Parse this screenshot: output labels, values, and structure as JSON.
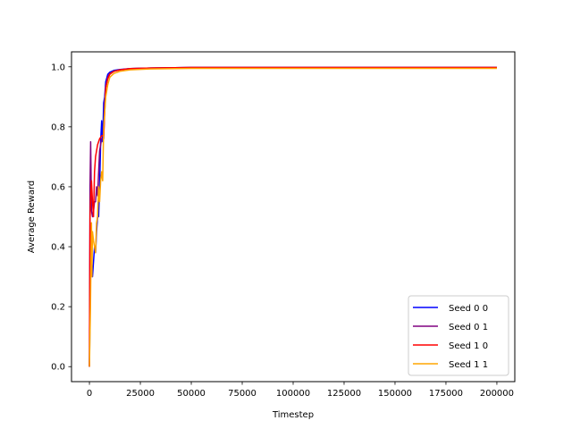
{
  "chart_data": {
    "type": "line",
    "title": "",
    "xlabel": "Timestep",
    "ylabel": "Average Reward",
    "xlim": [
      -8800,
      208800
    ],
    "ylim": [
      -0.05,
      1.05
    ],
    "xticks": [
      0,
      25000,
      50000,
      75000,
      100000,
      125000,
      150000,
      175000,
      200000
    ],
    "xtick_labels": [
      "0",
      "25000",
      "50000",
      "75000",
      "100000",
      "125000",
      "150000",
      "175000",
      "200000"
    ],
    "yticks": [
      0.0,
      0.2,
      0.4,
      0.6,
      0.8,
      1.0
    ],
    "ytick_labels": [
      "0.0",
      "0.2",
      "0.4",
      "0.6",
      "0.8",
      "1.0"
    ],
    "grid": false,
    "legend_position": "lower-right",
    "series": [
      {
        "name": "Seed 0 0",
        "color": "#0000ff",
        "x": [
          0,
          500,
          1000,
          1500,
          2000,
          2500,
          3000,
          3500,
          4000,
          4500,
          5000,
          5500,
          6000,
          6500,
          7000,
          7500,
          8000,
          9000,
          10000,
          12000,
          15000,
          20000,
          30000,
          50000,
          100000,
          150000,
          200000
        ],
        "y": [
          0.0,
          0.33,
          0.36,
          0.3,
          0.35,
          0.4,
          0.38,
          0.45,
          0.5,
          0.5,
          0.6,
          0.75,
          0.82,
          0.75,
          0.88,
          0.9,
          0.95,
          0.975,
          0.982,
          0.988,
          0.991,
          0.994,
          0.996,
          0.998,
          0.998,
          0.998,
          0.998
        ]
      },
      {
        "name": "Seed 0 1",
        "color": "#800080",
        "x": [
          0,
          300,
          600,
          1000,
          1500,
          2000,
          2500,
          3000,
          3500,
          4000,
          5000,
          6000,
          7000,
          7500,
          8000,
          9000,
          10000,
          12000,
          15000,
          20000,
          30000,
          50000,
          100000,
          150000,
          200000
        ],
        "y": [
          0.0,
          0.6,
          0.75,
          0.52,
          0.5,
          0.52,
          0.55,
          0.55,
          0.6,
          0.57,
          0.72,
          0.76,
          0.76,
          0.88,
          0.93,
          0.965,
          0.978,
          0.985,
          0.99,
          0.994,
          0.996,
          0.998,
          0.998,
          0.998,
          0.998
        ]
      },
      {
        "name": "Seed 1 0",
        "color": "#ff0000",
        "x": [
          0,
          300,
          700,
          1000,
          1500,
          2000,
          2500,
          3000,
          4000,
          5000,
          6000,
          7000,
          7500,
          8000,
          9000,
          10000,
          12000,
          15000,
          20000,
          30000,
          50000,
          100000,
          150000,
          200000
        ],
        "y": [
          0.0,
          0.5,
          0.58,
          0.62,
          0.55,
          0.5,
          0.65,
          0.7,
          0.74,
          0.76,
          0.77,
          0.77,
          0.85,
          0.93,
          0.96,
          0.975,
          0.985,
          0.99,
          0.994,
          0.996,
          0.998,
          0.998,
          0.998,
          0.998
        ]
      },
      {
        "name": "Seed 1 1",
        "color": "#ffa500",
        "x": [
          0,
          500,
          1000,
          1200,
          1500,
          2000,
          2500,
          3000,
          3500,
          4000,
          4500,
          5000,
          5500,
          6000,
          6500,
          7000,
          7500,
          8000,
          9000,
          10000,
          12000,
          15000,
          20000,
          30000,
          50000,
          100000,
          150000,
          200000
        ],
        "y": [
          0.0,
          0.2,
          0.48,
          0.3,
          0.45,
          0.42,
          0.4,
          0.38,
          0.48,
          0.5,
          0.6,
          0.55,
          0.62,
          0.65,
          0.62,
          0.8,
          0.85,
          0.9,
          0.94,
          0.965,
          0.978,
          0.985,
          0.99,
          0.993,
          0.995,
          0.995,
          0.995,
          0.995
        ]
      }
    ]
  }
}
